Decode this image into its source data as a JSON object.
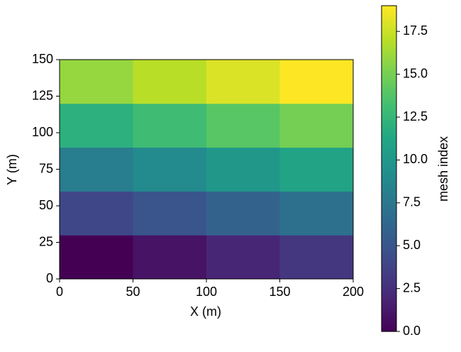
{
  "chart_data": {
    "type": "heatmap",
    "xlabel": "X (m)",
    "ylabel": "Y (m)",
    "x_edges": [
      0,
      50,
      100,
      150,
      200
    ],
    "y_edges": [
      0,
      30,
      60,
      90,
      120,
      150
    ],
    "z": [
      [
        0,
        1,
        2,
        3
      ],
      [
        4,
        5,
        6,
        7
      ],
      [
        8,
        9,
        10,
        11
      ],
      [
        12,
        13,
        14,
        15
      ],
      [
        16,
        17,
        18,
        19
      ]
    ],
    "xlim": [
      0,
      200
    ],
    "xticks": [
      0,
      50,
      100,
      150,
      200
    ],
    "ylim": [
      0,
      150
    ],
    "yticks": [
      0,
      25,
      50,
      75,
      100,
      125,
      150
    ],
    "colormap": "viridis",
    "colorbar": {
      "label": "mesh index",
      "clim": [
        0,
        19
      ],
      "ticks": [
        {
          "value": 0,
          "label": "0.0"
        },
        {
          "value": 2.5,
          "label": "2.5"
        },
        {
          "value": 5,
          "label": "5.0"
        },
        {
          "value": 7.5,
          "label": "7.5"
        },
        {
          "value": 10,
          "label": "10.0"
        },
        {
          "value": 12.5,
          "label": "12.5"
        },
        {
          "value": 15,
          "label": "15.0"
        },
        {
          "value": 17.5,
          "label": "17.5"
        }
      ]
    }
  }
}
